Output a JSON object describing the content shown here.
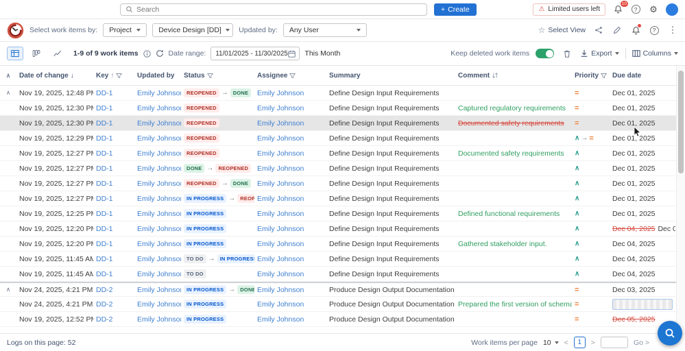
{
  "topbar": {
    "search_placeholder": "Search",
    "create_label": "Create",
    "limited_users_label": "Limited users left",
    "bell_badge": "10"
  },
  "filterbar": {
    "select_by_label": "Select work items by:",
    "work_item_type_value": "Project",
    "project_value": "Device Design [DD]",
    "updated_by_label": "Updated by:",
    "updated_by_value": "Any User",
    "select_view_label": "Select View"
  },
  "toolbar": {
    "items_count": "1-9 of 9 work items",
    "date_range_label": "Date range:",
    "date_range_value": "11/01/2025 - 11/30/2025",
    "quick_range_label": "This Month",
    "keep_deleted_label": "Keep deleted work items",
    "export_label": "Export",
    "columns_label": "Columns"
  },
  "table": {
    "headers": {
      "date": "Date of change",
      "key": "Key",
      "updated_by": "Updated by",
      "status": "Status",
      "assignee": "Assignee",
      "summary": "Summary",
      "comment": "Comment",
      "priority": "Priority",
      "due": "Due date"
    },
    "rows": [
      {
        "date": "Nov 19, 2025, 12:48 PM",
        "new_dot": false,
        "key": "DD-1",
        "updated_by": "Emily Johnson",
        "status": [
          "REOPENED",
          "DONE"
        ],
        "assignee": "Emily Johnson",
        "summary": "Define Design Input Requirements",
        "comment": "",
        "comment_type": "",
        "priority": [
          "medium"
        ],
        "due_old": "",
        "due": "Dec 01, 2025",
        "due_editing": false,
        "highlighted": false,
        "collapse": true,
        "group_first": false
      },
      {
        "date": "Nov 19, 2025, 12:30 PM",
        "new_dot": false,
        "key": "DD-1",
        "updated_by": "Emily Johnson",
        "status": [
          "REOPENED"
        ],
        "assignee": "Emily Johnson",
        "summary": "Define Design Input Requirements",
        "comment": "Captured regulatory requirements",
        "comment_type": "added",
        "priority": [
          "medium"
        ],
        "due_old": "",
        "due": "Dec 01, 2025",
        "due_editing": false,
        "highlighted": false,
        "collapse": false,
        "group_first": false
      },
      {
        "date": "Nov 19, 2025, 12:30 PM",
        "new_dot": false,
        "key": "DD-1",
        "updated_by": "Emily Johnson",
        "status": [
          "REOPENED"
        ],
        "assignee": "Emily Johnson",
        "summary": "Define Design Input Requirements",
        "comment": "Documented safety requirements",
        "comment_type": "deleted",
        "priority": [
          "medium"
        ],
        "due_old": "",
        "due": "Dec 01, 2025",
        "due_editing": false,
        "highlighted": true,
        "collapse": false,
        "group_first": false
      },
      {
        "date": "Nov 19, 2025, 12:29 PM",
        "new_dot": false,
        "key": "DD-1",
        "updated_by": "Emily Johnson",
        "status": [
          "REOPENED"
        ],
        "assignee": "Emily Johnson",
        "summary": "Define Design Input Requirements",
        "comment": "",
        "comment_type": "",
        "priority": [
          "high",
          "medium"
        ],
        "due_old": "",
        "due": "Dec 01, 2025",
        "due_editing": false,
        "highlighted": false,
        "collapse": false,
        "group_first": false
      },
      {
        "date": "Nov 19, 2025, 12:27 PM",
        "new_dot": false,
        "key": "DD-1",
        "updated_by": "Emily Johnson",
        "status": [
          "REOPENED"
        ],
        "assignee": "Emily Johnson",
        "summary": "Define Design Input Requirements",
        "comment": "Documented safety requirements",
        "comment_type": "added",
        "priority": [
          "high"
        ],
        "due_old": "",
        "due": "Dec 01, 2025",
        "due_editing": false,
        "highlighted": false,
        "collapse": false,
        "group_first": false
      },
      {
        "date": "Nov 19, 2025, 12:27 PM",
        "new_dot": false,
        "key": "DD-1",
        "updated_by": "Emily Johnson",
        "status": [
          "DONE",
          "REOPENED"
        ],
        "assignee": "Emily Johnson",
        "summary": "Define Design Input Requirements",
        "comment": "",
        "comment_type": "",
        "priority": [
          "high"
        ],
        "due_old": "",
        "due": "Dec 01, 2025",
        "due_editing": false,
        "highlighted": false,
        "collapse": false,
        "group_first": false
      },
      {
        "date": "Nov 19, 2025, 12:27 PM",
        "new_dot": false,
        "key": "DD-1",
        "updated_by": "Emily Johnson",
        "status": [
          "REOPENED",
          "DONE"
        ],
        "assignee": "Emily Johnson",
        "summary": "Define Design Input Requirements",
        "comment": "",
        "comment_type": "",
        "priority": [
          "high"
        ],
        "due_old": "",
        "due": "Dec 01, 2025",
        "due_editing": false,
        "highlighted": false,
        "collapse": false,
        "group_first": false
      },
      {
        "date": "Nov 19, 2025, 12:27 PM",
        "new_dot": false,
        "key": "DD-1",
        "updated_by": "Emily Johnson",
        "status": [
          "IN PROGRESS",
          "REOPENED"
        ],
        "assignee": "Emily Johnson",
        "summary": "Define Design Input Requirements",
        "comment": "",
        "comment_type": "",
        "priority": [
          "high"
        ],
        "due_old": "",
        "due": "Dec 01, 2025",
        "due_editing": false,
        "highlighted": false,
        "collapse": false,
        "group_first": false
      },
      {
        "date": "Nov 19, 2025, 12:25 PM",
        "new_dot": false,
        "key": "DD-1",
        "updated_by": "Emily Johnson",
        "status": [
          "IN PROGRESS"
        ],
        "assignee": "Emily Johnson",
        "summary": "Define Design Input Requirements",
        "comment": "Defined functional requirements",
        "comment_type": "added",
        "priority": [
          "high"
        ],
        "due_old": "",
        "due": "Dec 01, 2025",
        "due_editing": false,
        "highlighted": false,
        "collapse": false,
        "group_first": false
      },
      {
        "date": "Nov 19, 2025, 12:20 PM",
        "new_dot": false,
        "key": "DD-1",
        "updated_by": "Emily Johnson",
        "status": [
          "IN PROGRESS"
        ],
        "assignee": "Emily Johnson",
        "summary": "Define Design Input Requirements",
        "comment": "",
        "comment_type": "",
        "priority": [
          "high"
        ],
        "due_old": "Dec 04, 2025",
        "due": "Dec 01, 2025",
        "due_editing": false,
        "highlighted": false,
        "collapse": false,
        "group_first": false
      },
      {
        "date": "Nov 19, 2025, 12:20 PM",
        "new_dot": false,
        "key": "DD-1",
        "updated_by": "Emily Johnson",
        "status": [
          "IN PROGRESS"
        ],
        "assignee": "Emily Johnson",
        "summary": "Define Design Input Requirements",
        "comment": "Gathered stakeholder input.",
        "comment_type": "added",
        "priority": [
          "high"
        ],
        "due_old": "",
        "due": "Dec 04, 2025",
        "due_editing": false,
        "highlighted": false,
        "collapse": false,
        "group_first": false
      },
      {
        "date": "Nov 19, 2025, 11:45 AM",
        "new_dot": false,
        "key": "DD-1",
        "updated_by": "Emily Johnson",
        "status": [
          "TO DO",
          "IN PROGRESS"
        ],
        "assignee": "Emily Johnson",
        "summary": "Define Design Input Requirements",
        "comment": "",
        "comment_type": "",
        "priority": [
          "high"
        ],
        "due_old": "",
        "due": "Dec 04, 2025",
        "due_editing": false,
        "highlighted": false,
        "collapse": false,
        "group_first": false
      },
      {
        "date": "Nov 19, 2025, 11:45 AM",
        "new_dot": true,
        "key": "DD-1",
        "updated_by": "Emily Johnson",
        "status": [
          "TO DO"
        ],
        "assignee": "Emily Johnson",
        "summary": "Define Design Input Requirements",
        "comment": "",
        "comment_type": "",
        "priority": [
          "high"
        ],
        "due_old": "",
        "due": "Dec 04, 2025",
        "due_editing": false,
        "highlighted": false,
        "collapse": false,
        "group_first": false
      },
      {
        "date": "Nov 24, 2025, 4:21 PM",
        "new_dot": false,
        "key": "DD-2",
        "updated_by": "Emily Johnson",
        "status": [
          "IN PROGRESS",
          "DONE"
        ],
        "assignee": "Emily Johnson",
        "summary": "Produce Design Output Documentation",
        "comment": "",
        "comment_type": "",
        "priority": [
          "medium"
        ],
        "due_old": "",
        "due": "Dec 03, 2025",
        "due_editing": false,
        "highlighted": false,
        "collapse": true,
        "group_first": true
      },
      {
        "date": "Nov 24, 2025, 4:21 PM",
        "new_dot": false,
        "key": "DD-2",
        "updated_by": "Emily Johnson",
        "status": [
          "IN PROGRESS"
        ],
        "assignee": "Emily Johnson",
        "summary": "Produce Design Output Documentation",
        "comment": "Prepared the first version of schematics, drawi...",
        "comment_type": "added",
        "priority": [
          "medium"
        ],
        "due_old": "",
        "due": "",
        "due_editing": true,
        "highlighted": false,
        "collapse": false,
        "group_first": false
      },
      {
        "date": "Nov 19, 2025, 12:52 PM",
        "new_dot": false,
        "key": "DD-2",
        "updated_by": "Emily Johnson",
        "status": [
          "IN PROGRESS"
        ],
        "assignee": "Emily Johnson",
        "summary": "Produce Design Output Documentation",
        "comment": "",
        "comment_type": "",
        "priority": [
          "medium"
        ],
        "due_old": "Dec 05, 2025",
        "due": "",
        "due_editing": false,
        "highlighted": false,
        "collapse": false,
        "group_first": false
      }
    ]
  },
  "footer": {
    "logs_label": "Logs on this page: 52",
    "per_page_label": "Work items per page",
    "per_page_value": "10",
    "prev_label": "<",
    "current_page": "1",
    "next_label": ">",
    "go_label": "Go >"
  },
  "colors": {
    "accent_blue": "#2271d3",
    "toggle_green": "#2ca26a",
    "link_blue": "#3e7fd0",
    "comment_green": "#2f9e60",
    "removed_red": "#d5493f",
    "priority_orange": "#ef8139",
    "priority_teal": "#2a9d8f"
  }
}
